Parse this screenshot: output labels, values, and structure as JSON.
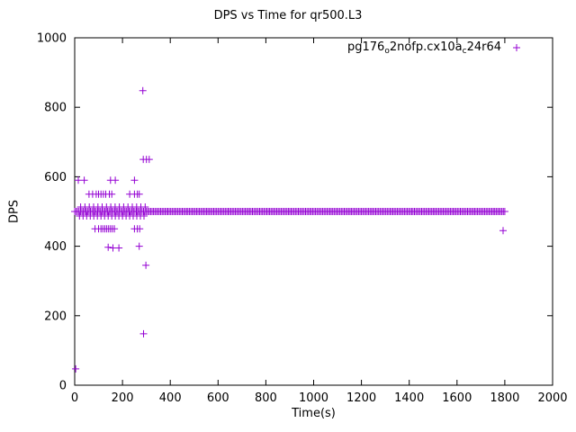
{
  "chart_data": {
    "type": "scatter",
    "title": "DPS vs Time for qr500.L3",
    "xlabel": "Time(s)",
    "ylabel": "DPS",
    "xlim": [
      0,
      2000
    ],
    "ylim": [
      0,
      1000
    ],
    "xticks": [
      0,
      200,
      400,
      600,
      800,
      1000,
      1200,
      1400,
      1600,
      1800,
      2000
    ],
    "yticks": [
      0,
      200,
      400,
      600,
      800,
      1000
    ],
    "grid": false,
    "legend_position": "top-right-inside",
    "series": [
      {
        "name": "pg176o2nofp.cx10ac24r64",
        "name_parts": [
          {
            "text": "pg176"
          },
          {
            "text": "o",
            "sub": true
          },
          {
            "text": "2nofp.cx10a"
          },
          {
            "text": "c",
            "sub": true
          },
          {
            "text": "24r64"
          }
        ],
        "color": "#9400d3",
        "marker": "plus",
        "steady_bands": [
          {
            "y": 500,
            "x_start": 0,
            "x_end": 1800,
            "step": 6
          },
          {
            "y": 487,
            "x_start": 20,
            "x_end": 300,
            "step": 15
          },
          {
            "y": 513,
            "x_start": 25,
            "x_end": 295,
            "step": 18
          }
        ],
        "points": [
          [
            4,
            47
          ],
          [
            15,
            590
          ],
          [
            40,
            590
          ],
          [
            150,
            590
          ],
          [
            170,
            590
          ],
          [
            250,
            590
          ],
          [
            60,
            550
          ],
          [
            75,
            550
          ],
          [
            90,
            550
          ],
          [
            100,
            550
          ],
          [
            110,
            550
          ],
          [
            120,
            550
          ],
          [
            130,
            550
          ],
          [
            145,
            550
          ],
          [
            155,
            550
          ],
          [
            230,
            550
          ],
          [
            250,
            550
          ],
          [
            262,
            550
          ],
          [
            270,
            550
          ],
          [
            85,
            450
          ],
          [
            100,
            450
          ],
          [
            110,
            450
          ],
          [
            118,
            450
          ],
          [
            126,
            450
          ],
          [
            134,
            450
          ],
          [
            142,
            450
          ],
          [
            150,
            450
          ],
          [
            158,
            450
          ],
          [
            166,
            450
          ],
          [
            250,
            450
          ],
          [
            262,
            450
          ],
          [
            272,
            450
          ],
          [
            140,
            397
          ],
          [
            160,
            395
          ],
          [
            185,
            395
          ],
          [
            270,
            400
          ],
          [
            287,
            650
          ],
          [
            300,
            650
          ],
          [
            312,
            650
          ],
          [
            285,
            848
          ],
          [
            298,
            345
          ],
          [
            288,
            148
          ],
          [
            1793,
            445
          ]
        ]
      }
    ]
  }
}
